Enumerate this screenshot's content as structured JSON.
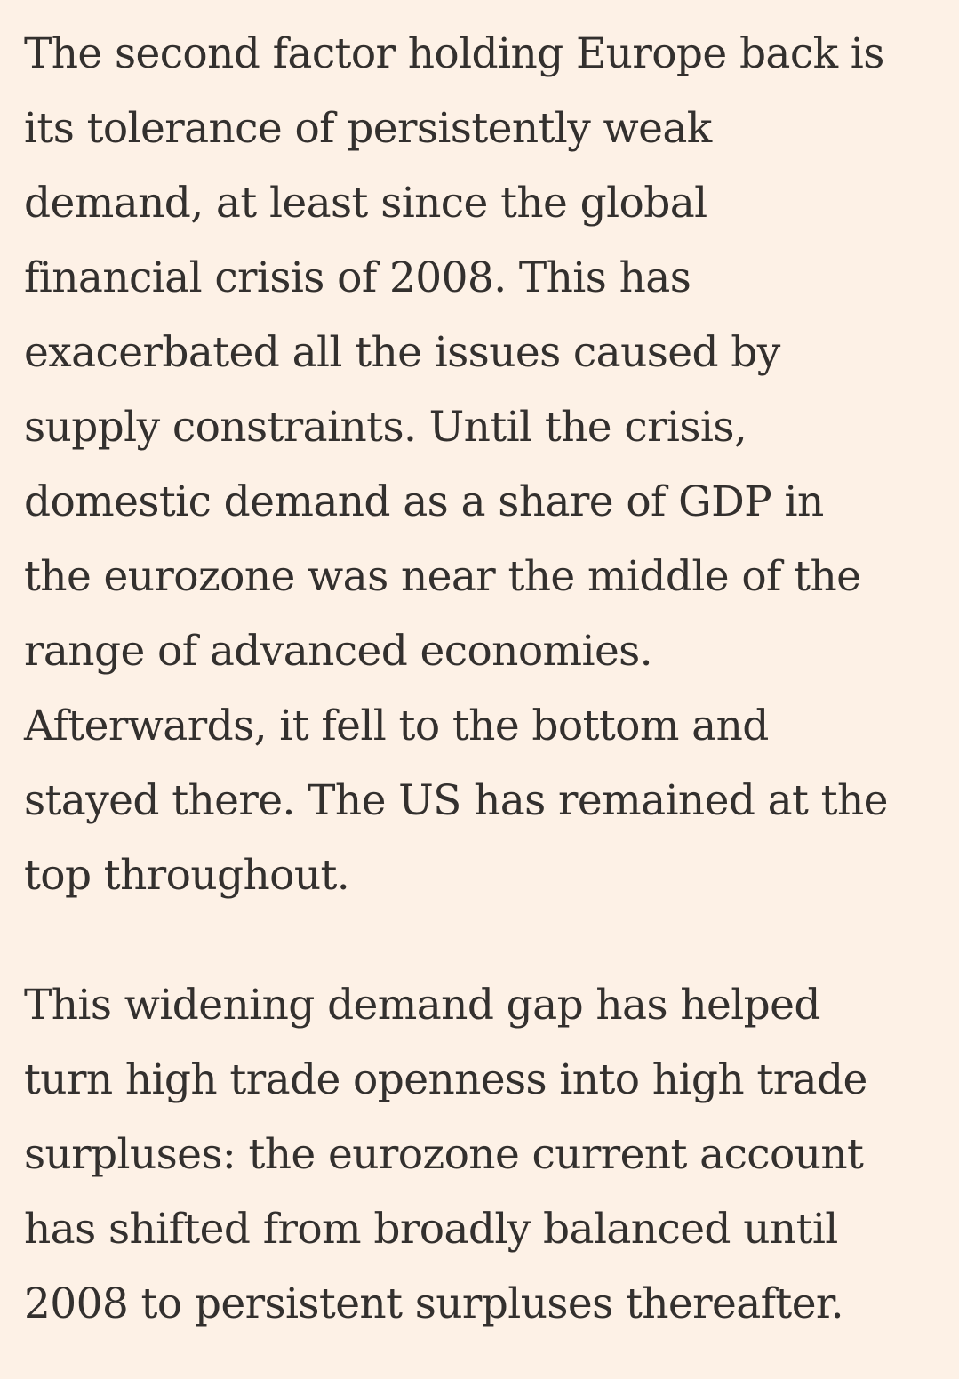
{
  "article": {
    "paragraphs": [
      {
        "lines": [
          "The second factor holding Europe back is",
          "its tolerance of persistently weak",
          "demand, at least since the global",
          "financial crisis of 2008. This has",
          "exacerbated all the issues caused by",
          "supply constraints. Until the crisis,",
          "domestic demand as a share of GDP in",
          "the eurozone was near the middle of the",
          "range of advanced economies.",
          "Afterwards, it fell to the bottom and",
          "stayed there. The US has remained at the",
          "top throughout."
        ]
      },
      {
        "lines": [
          "This widening demand gap has helped",
          "turn high trade openness into high trade",
          "surpluses: the eurozone current account",
          "has shifted from broadly balanced until",
          "2008 to persistent surpluses thereafter."
        ]
      }
    ]
  }
}
